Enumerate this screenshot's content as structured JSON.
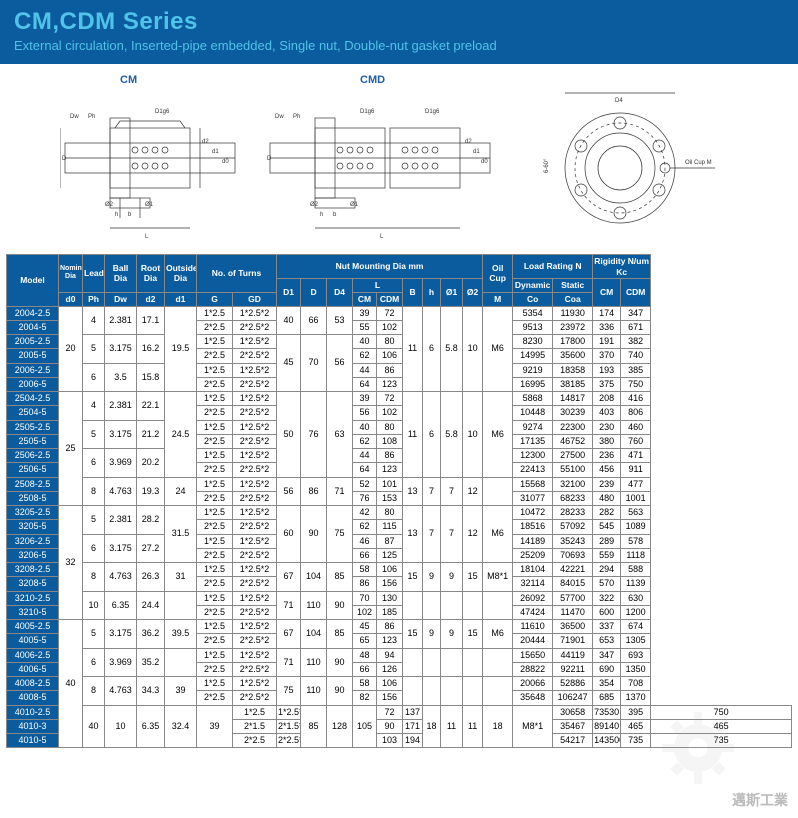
{
  "header": {
    "title": "CM,CDM Series",
    "subtitle": "External circulation, Inserted-pipe embedded, Single nut, Double-nut gasket preload"
  },
  "diagrams": {
    "label_cm": "CM",
    "label_cmd": "CMD",
    "oil_cup": "Oil Cup M",
    "d4": "D4",
    "dw": "Dw",
    "ph": "Ph",
    "d1g6": "D1g6",
    "d": "D",
    "d0": "d0",
    "d1": "d1",
    "d2": "d2",
    "h": "h",
    "b": "b",
    "L": "L",
    "phi1": "Ø1",
    "phi2": "Ø2",
    "angle": "6-60°"
  },
  "columns": {
    "model": "Model",
    "nom_dia": "Nominal Dia",
    "lead": "Lead",
    "ball_dia": "Ball Dia",
    "root_dia": "Root Dia",
    "out_dia": "Outside Dia",
    "turns": "No. of Turns",
    "nut_mount": "Nut Mounting Dia   mm",
    "oil": "Oil Cup",
    "load": "Load Rating N",
    "rigid": "Rigidity N/um Kc",
    "d0": "d0",
    "ph": "Ph",
    "dw": "Dw",
    "d2": "d2",
    "d1": "d1",
    "g": "G",
    "gd": "GD",
    "D1": "D1",
    "D": "D",
    "D4": "D4",
    "L": "L",
    "B": "B",
    "h": "h",
    "phi1": "Ø1",
    "phi2": "Ø2",
    "M": "M",
    "cm": "CM",
    "cdm": "CDM",
    "dyn": "Dynamic",
    "sta": "Static",
    "co": "Co",
    "coa": "Coa"
  },
  "rows": [
    {
      "models": [
        "2004-2.5",
        "2004-5",
        "2005-2.5",
        "2005-5",
        "2006-2.5",
        "2006-5"
      ],
      "d0": "20",
      "phGroups": [
        {
          "ph": "4",
          "dw": "2.381",
          "d2": "17.1"
        },
        {
          "ph": "5",
          "dw": "3.175",
          "d2": "16.2"
        },
        {
          "ph": "6",
          "dw": "3.5",
          "d2": "15.8"
        }
      ],
      "d1": "19.5",
      "g": [
        "1*2.5",
        "2*2.5",
        "1*2.5",
        "2*2.5",
        "1*2.5",
        "2*2.5"
      ],
      "gd": [
        "1*2.5*2",
        "2*2.5*2",
        "1*2.5*2",
        "2*2.5*2",
        "1*2.5*2",
        "2*2.5*2"
      ],
      "D1seg": [
        {
          "D1": "40",
          "D": "66",
          "D4": "53",
          "span": 2
        },
        {
          "D1": "45",
          "D": "70",
          "D4": "56",
          "span": 4
        }
      ],
      "Lcm": [
        "39",
        "55",
        "40",
        "62",
        "44",
        "64"
      ],
      "Lcdm": [
        "72",
        "102",
        "80",
        "106",
        "86",
        "123"
      ],
      "B": "11",
      "h": "6",
      "p1": "5.8",
      "p2": "10",
      "M": "M6",
      "co": [
        "5354",
        "9513",
        "8230",
        "14995",
        "9219",
        "16995"
      ],
      "coa": [
        "11930",
        "23972",
        "17800",
        "35600",
        "18358",
        "38185"
      ],
      "kcm": [
        "174",
        "336",
        "191",
        "370",
        "193",
        "375"
      ],
      "kcdm": [
        "347",
        "671",
        "382",
        "740",
        "385",
        "750"
      ]
    },
    {
      "models": [
        "2504-2.5",
        "2504-5",
        "2505-2.5",
        "2505-5",
        "2506-2.5",
        "2506-5"
      ],
      "d0": "25",
      "phGroups": [
        {
          "ph": "4",
          "dw": "2.381",
          "d2": "22.1"
        },
        {
          "ph": "5",
          "dw": "3.175",
          "d2": "21.2"
        },
        {
          "ph": "6",
          "dw": "3.969",
          "d2": "20.2"
        }
      ],
      "d1": "24.5",
      "g": [
        "1*2.5",
        "2*2.5",
        "1*2.5",
        "2*2.5",
        "1*2.5",
        "2*2.5"
      ],
      "gd": [
        "1*2.5*2",
        "2*2.5*2",
        "1*2.5*2",
        "2*2.5*2",
        "1*2.5*2",
        "2*2.5*2"
      ],
      "D1seg": [
        {
          "D1": "50",
          "D": "76",
          "D4": "63",
          "span": 6
        }
      ],
      "Lcm": [
        "39",
        "56",
        "40",
        "62",
        "44",
        "64"
      ],
      "Lcdm": [
        "72",
        "102",
        "80",
        "108",
        "86",
        "123"
      ],
      "B": "11",
      "h": "6",
      "p1": "5.8",
      "p2": "10",
      "M": "M6",
      "co": [
        "5868",
        "10448",
        "9274",
        "17135",
        "12300",
        "22413"
      ],
      "coa": [
        "14817",
        "30239",
        "22300",
        "46752",
        "27500",
        "55100"
      ],
      "kcm": [
        "208",
        "403",
        "230",
        "380",
        "236",
        "456"
      ],
      "kcdm": [
        "416",
        "806",
        "460",
        "760",
        "471",
        "911"
      ],
      "extra": {
        "models": [
          "2508-2.5",
          "2508-5"
        ],
        "ph": "8",
        "dw": "4.763",
        "d2": "19.3",
        "d1": "24",
        "g": [
          "1*2.5",
          "2*2.5"
        ],
        "gd": [
          "1*2.5*2",
          "2*2.5*2"
        ],
        "D1": "56",
        "D": "86",
        "D4": "71",
        "Lcm": [
          "52",
          "76"
        ],
        "Lcdm": [
          "101",
          "153"
        ],
        "B": "13",
        "h": "7",
        "p1": "7",
        "p2": "12",
        "M": "",
        "co": [
          "15568",
          "31077"
        ],
        "coa": [
          "32100",
          "68233"
        ],
        "kcm": [
          "239",
          "480"
        ],
        "kcdm": [
          "477",
          "1001"
        ]
      }
    },
    {
      "models": [
        "3205-2.5",
        "3205-5",
        "3206-2.5",
        "3206-5"
      ],
      "d0": "32",
      "phGroups": [
        {
          "ph": "5",
          "dw": "2.381",
          "d2": "28.2"
        },
        {
          "ph": "6",
          "dw": "3.175",
          "d2": "27.2"
        }
      ],
      "d1": "31.5",
      "g": [
        "1*2.5",
        "2*2.5",
        "1*2.5",
        "2*2.5"
      ],
      "gd": [
        "1*2.5*2",
        "2*2.5*2",
        "1*2.5*2",
        "2*2.5*2"
      ],
      "D1seg": [
        {
          "D1": "60",
          "D": "90",
          "D4": "75",
          "span": 4
        }
      ],
      "Lcm": [
        "42",
        "62",
        "46",
        "66"
      ],
      "Lcdm": [
        "80",
        "115",
        "87",
        "125"
      ],
      "B": "13",
      "h": "7",
      "p1": "7",
      "p2": "12",
      "M": "M6",
      "co": [
        "10472",
        "18516",
        "14189",
        "25209"
      ],
      "coa": [
        "28233",
        "57092",
        "35243",
        "70693"
      ],
      "kcm": [
        "282",
        "545",
        "289",
        "559"
      ],
      "kcdm": [
        "563",
        "1089",
        "578",
        "1118"
      ],
      "sub2": [
        {
          "models": [
            "3208-2.5",
            "3208-5"
          ],
          "ph": "8",
          "dw": "4.763",
          "d2": "26.3",
          "d1": "31",
          "g": [
            "1*2.5",
            "2*2.5"
          ],
          "gd": [
            "1*2.5*2",
            "2*2.5*2"
          ],
          "D1": "67",
          "D": "104",
          "D4": "85",
          "Lcm": [
            "58",
            "86"
          ],
          "Lcdm": [
            "106",
            "156"
          ],
          "B": "15",
          "h": "9",
          "p1": "9",
          "p2": "15",
          "M": "M8*1",
          "co": [
            "18104",
            "32114"
          ],
          "coa": [
            "42221",
            "84015"
          ],
          "kcm": [
            "294",
            "570"
          ],
          "kcdm": [
            "588",
            "1139"
          ]
        },
        {
          "models": [
            "3210-2.5",
            "3210-5"
          ],
          "ph": "10",
          "dw": "6.35",
          "d2": "24.4",
          "d1": "",
          "g": [
            "1*2.5",
            "2*2.5"
          ],
          "gd": [
            "1*2.5*2",
            "2*2.5*2"
          ],
          "D1": "71",
          "D": "110",
          "D4": "90",
          "Lcm": [
            "70",
            "102"
          ],
          "Lcdm": [
            "130",
            "185"
          ],
          "B": "",
          "h": "",
          "p1": "",
          "p2": "",
          "M": "",
          "co": [
            "26092",
            "47424"
          ],
          "coa": [
            "57700",
            "11470"
          ],
          "kcm": [
            "322",
            "600"
          ],
          "kcdm": [
            "630",
            "1200"
          ]
        }
      ]
    },
    {
      "models": [
        "4005-2.5",
        "4005-5"
      ],
      "d0": "40",
      "phGroups": [
        {
          "ph": "5",
          "dw": "3.175",
          "d2": "36.2"
        }
      ],
      "d1": "39.5",
      "g": [
        "1*2.5",
        "2*2.5"
      ],
      "gd": [
        "1*2.5*2",
        "2*2.5*2"
      ],
      "D1seg": [
        {
          "D1": "67",
          "D": "104",
          "D4": "85",
          "span": 2
        }
      ],
      "Lcm": [
        "45",
        "65"
      ],
      "Lcdm": [
        "86",
        "123"
      ],
      "B": "15",
      "h": "9",
      "p1": "9",
      "p2": "15",
      "M": "M6",
      "co": [
        "11610",
        "20444"
      ],
      "coa": [
        "36500",
        "71901"
      ],
      "kcm": [
        "337",
        "653"
      ],
      "kcdm": [
        "674",
        "1305"
      ],
      "sub2": [
        {
          "models": [
            "4006-2.5",
            "4006-5"
          ],
          "ph": "6",
          "dw": "3.969",
          "d2": "35.2",
          "d1": "",
          "g": [
            "1*2.5",
            "2*2.5"
          ],
          "gd": [
            "1*2.5*2",
            "2*2.5*2"
          ],
          "D1": "71",
          "D": "110",
          "D4": "90",
          "Lcm": [
            "48",
            "66"
          ],
          "Lcdm": [
            "94",
            "126"
          ],
          "B": "",
          "h": "",
          "p1": "",
          "p2": "",
          "M": "",
          "co": [
            "15650",
            "28822"
          ],
          "coa": [
            "44119",
            "92211"
          ],
          "kcm": [
            "347",
            "690"
          ],
          "kcdm": [
            "693",
            "1350"
          ]
        },
        {
          "models": [
            "4008-2.5",
            "4008-5"
          ],
          "ph": "8",
          "dw": "4.763",
          "d2": "34.3",
          "d1": "39",
          "g": [
            "1*2.5",
            "2*2.5"
          ],
          "gd": [
            "1*2.5*2",
            "2*2.5*2"
          ],
          "D1": "75",
          "D": "110",
          "D4": "90",
          "Lcm": [
            "58",
            "82"
          ],
          "Lcdm": [
            "106",
            "156"
          ],
          "B": "",
          "h": "",
          "p1": "",
          "p2": "",
          "M": "",
          "co": [
            "20066",
            "35648"
          ],
          "coa": [
            "52886",
            "106247"
          ],
          "kcm": [
            "354",
            "685"
          ],
          "kcdm": [
            "708",
            "1370"
          ]
        },
        {
          "models": [
            "4010-2.5",
            "4010-3",
            "4010-5"
          ],
          "ph": "10",
          "dw": "6.35",
          "d2": "32.4",
          "d1": "39",
          "d0b": "40",
          "g": [
            "1*2.5",
            "2*1.5",
            "2*2.5"
          ],
          "gd": [
            "1*2.5*2",
            "2*1.5*2",
            "2*2.5*2"
          ],
          "D1": "85",
          "D": "128",
          "D4": "105",
          "Lcm": [
            "72",
            "90",
            "103"
          ],
          "Lcdm": [
            "137",
            "171",
            "194"
          ],
          "B": "18",
          "h": "11",
          "p1": "11",
          "p2": "18",
          "M": "M8*1",
          "co": [
            "30658",
            "35467",
            "54217"
          ],
          "coa": [
            "73530",
            "89140",
            "143500"
          ],
          "kcm": [
            "395",
            "465",
            "735"
          ],
          "kcdm": [
            "750",
            "465",
            "735"
          ]
        }
      ]
    }
  ],
  "watermark": "邁斯工業"
}
